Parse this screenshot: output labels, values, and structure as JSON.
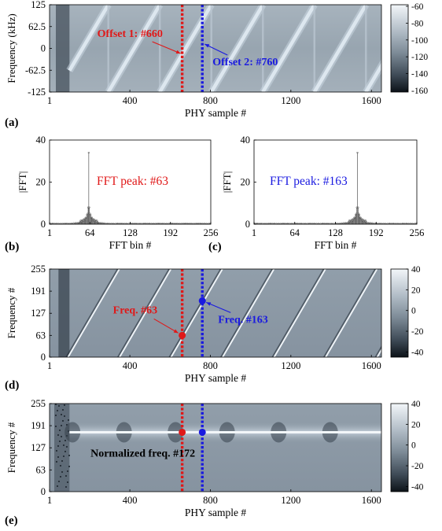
{
  "panel_labels": [
    "(a)",
    "(b)",
    "(c)",
    "(d)",
    "(e)"
  ],
  "colors": {
    "red": "#e01818",
    "blue": "#1a1ae0",
    "plot_bg": "#8e9ba6",
    "chirp_light": "#dde7ef",
    "bar": "#555555"
  },
  "chart_data": [
    {
      "id": "a",
      "type": "heatmap",
      "xlabel": "PHY sample #",
      "ylabel": "Frequency (kHz)",
      "xlim": [
        1,
        1650
      ],
      "ylim": [
        -125,
        125
      ],
      "x_ticks": [
        1,
        400,
        800,
        1200,
        1600
      ],
      "x_tick_labels": [
        "1",
        "400",
        "800",
        "1200",
        "1600"
      ],
      "y_ticks": [
        125,
        62.5,
        0,
        -62.5,
        -125
      ],
      "y_tick_labels": [
        "125",
        "62.5",
        "0",
        "-62.5",
        "-125"
      ],
      "colorbar": {
        "min": -160,
        "max": -60,
        "ticks": [
          "-60",
          "-80",
          "-100",
          "-120",
          "-140",
          "-160"
        ]
      },
      "signal_start": 100,
      "chirp_period": 256,
      "chirp_start_offset": 63,
      "markers": [
        {
          "x": 660,
          "color": "red",
          "label": "Offset 1: #660"
        },
        {
          "x": 760,
          "color": "blue",
          "label": "Offset 2: #760"
        }
      ]
    },
    {
      "id": "b",
      "type": "bar",
      "xlabel": "FFT bin #",
      "ylabel": "|FFT|",
      "xlim": [
        1,
        256
      ],
      "ylim": [
        0,
        40
      ],
      "x_tick_labels": [
        "1",
        "64",
        "128",
        "192",
        "256"
      ],
      "y_tick_labels": [
        "0",
        "20",
        "40"
      ],
      "peak_bin": 63,
      "peak_value": 34,
      "annotation": "FFT peak: #63",
      "annotation_color": "red"
    },
    {
      "id": "c",
      "type": "bar",
      "xlabel": "FFT bin #",
      "ylabel": "|FFT|",
      "xlim": [
        1,
        256
      ],
      "ylim": [
        0,
        40
      ],
      "x_tick_labels": [
        "1",
        "64",
        "128",
        "192",
        "256"
      ],
      "y_tick_labels": [
        "0",
        "20",
        "40"
      ],
      "peak_bin": 163,
      "peak_value": 34,
      "annotation": "FFT peak: #163",
      "annotation_color": "blue"
    },
    {
      "id": "d",
      "type": "heatmap",
      "xlabel": "PHY sample #",
      "ylabel": "Frequency #",
      "xlim": [
        1,
        1650
      ],
      "ylim": [
        0,
        255
      ],
      "x_ticks": [
        1,
        400,
        800,
        1200,
        1600
      ],
      "x_tick_labels": [
        "1",
        "400",
        "800",
        "1200",
        "1600"
      ],
      "y_ticks": [
        255,
        191,
        127,
        63,
        0
      ],
      "y_tick_labels": [
        "255",
        "191",
        "127",
        "63",
        "0"
      ],
      "colorbar": {
        "min": -45,
        "max": 40,
        "ticks": [
          "40",
          "20",
          "0",
          "-20",
          "-40"
        ]
      },
      "signal_start": 100,
      "markers": [
        {
          "x": 660,
          "y": 63,
          "color": "red",
          "label": "Freq. #63"
        },
        {
          "x": 760,
          "y": 163,
          "color": "blue",
          "label": "Freq. #163"
        }
      ]
    },
    {
      "id": "e",
      "type": "heatmap",
      "xlabel": "PHY sample #",
      "ylabel": "Frequency #",
      "xlim": [
        1,
        1650
      ],
      "ylim": [
        0,
        255
      ],
      "x_ticks": [
        1,
        400,
        800,
        1200,
        1600
      ],
      "x_tick_labels": [
        "1",
        "400",
        "800",
        "1200",
        "1600"
      ],
      "y_ticks": [
        255,
        191,
        127,
        63,
        0
      ],
      "y_tick_labels": [
        "255",
        "191",
        "127",
        "63",
        "0"
      ],
      "colorbar": {
        "min": -45,
        "max": 40,
        "ticks": [
          "40",
          "20",
          "0",
          "-20",
          "-40"
        ]
      },
      "signal_start": 100,
      "normalized_freq": 172,
      "markers": [
        {
          "x": 660,
          "y": 172,
          "color": "red"
        },
        {
          "x": 760,
          "y": 172,
          "color": "blue"
        }
      ],
      "annotation": "Normalized freq. #172"
    }
  ]
}
